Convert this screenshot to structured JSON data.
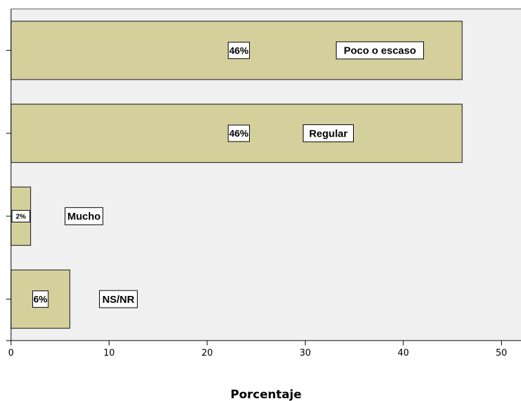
{
  "chart_data": {
    "type": "bar",
    "orientation": "horizontal",
    "categories": [
      "Poco o escaso",
      "Regular",
      "Mucho",
      "NS/NR"
    ],
    "values": [
      46,
      46,
      2,
      6
    ],
    "value_labels": [
      "46%",
      "46%",
      "2%",
      "6%"
    ],
    "xlabel": "Porcentaje",
    "ylabel": "",
    "xlim": [
      0,
      52
    ],
    "xticks": [
      0,
      10,
      20,
      30,
      40,
      50
    ],
    "grid": false,
    "colors": {
      "bar_fill": "#d5cf9b",
      "bar_stroke": "#333333",
      "plot_background": "#f0f0f0",
      "label_box": "#ffffff"
    }
  }
}
